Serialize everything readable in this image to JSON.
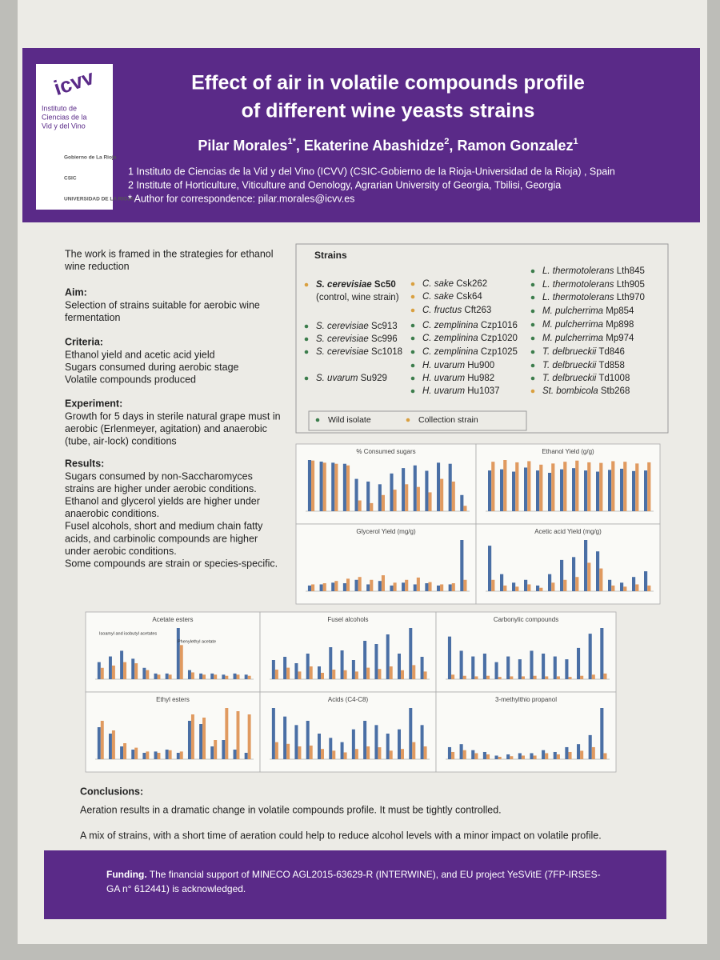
{
  "header": {
    "logo": {
      "name": "icvv",
      "lines": [
        "Instituto de",
        "Ciencias de la",
        "Vid y del Vino"
      ],
      "partners": [
        "Gobierno de La Rioja",
        "CSIC",
        "UNIVERSIDAD DE LA RIOJA"
      ]
    },
    "title": [
      "Effect of air in volatile compounds profile",
      "of different wine yeasts strains"
    ],
    "authors": [
      {
        "name": "Pilar Morales",
        "sup": "1*",
        "punct": ","
      },
      {
        "name": "Ekaterine Abashidze",
        "sup": "2",
        "punct": ","
      },
      {
        "name": "Ramon Gonzalez",
        "sup": "1"
      }
    ],
    "affiliations": [
      "1 Instituto de Ciencias de la Vid y del Vino (ICVV) (CSIC-Gobierno de la Rioja-Universidad de la Rioja) , Spain",
      "2 Institute of Horticulture, Viticulture and Oenology, Agrarian University of Georgia, Tbilisi, Georgia",
      "* Author for correspondence: pilar.morales@icvv.es"
    ]
  },
  "intro": [
    {
      "lines": [
        "The work is framed in the strategies for ethanol",
        "wine reduction"
      ]
    },
    {
      "heading": "Aim:",
      "lines": [
        "Selection of strains suitable for aerobic wine",
        "fermentation"
      ]
    },
    {
      "heading": "Criteria:",
      "lines": [
        "Ethanol yield and acetic acid yield",
        "Sugars consumed during aerobic stage",
        "Volatile compounds produced"
      ]
    },
    {
      "heading": "Experiment:",
      "lines": [
        "Growth for 5 days in sterile natural grape must in",
        "aerobic (Erlenmeyer, agitation) and anaerobic",
        "(tube, air-lock) conditions"
      ]
    },
    {
      "heading": "Results:",
      "lines": [
        "Sugars consumed by non-Saccharomyces",
        "strains are higher under aerobic conditions.",
        "Ethanol and glycerol yields are higher under",
        "anaerobic conditions.",
        "Fusel alcohols, short and medium chain fatty",
        "acids, and carbinolic compounds are higher",
        "under aerobic conditions.",
        "Some compounds are strain or species-specific."
      ]
    }
  ],
  "strains": {
    "title": "Strains",
    "columns": [
      [
        {
          "species": "S. cerevisiae",
          "code": "Sc50",
          "origin": 1,
          "bold": true,
          "note": "(control, wine strain)"
        },
        {
          "species": "S. cerevisiae",
          "code": "Sc913",
          "origin": 0
        },
        {
          "species": "S. cerevisiae",
          "code": "Sc996",
          "origin": 0
        },
        {
          "species": "S. cerevisiae",
          "code": "Sc1018",
          "origin": 0
        },
        {
          "species": "S. uvarum",
          "code": "Su929",
          "origin": 0
        }
      ],
      [
        {
          "species": "C. sake",
          "code": "Csk262",
          "origin": 1
        },
        {
          "species": "C. sake",
          "code": "Csk64",
          "origin": 1
        },
        {
          "species": "C. fructus",
          "code": "Cft263",
          "origin": 1
        },
        {
          "species": "C. zemplinina",
          "code": "Czp1016",
          "origin": 0
        },
        {
          "species": "C. zemplinina",
          "code": "Czp1020",
          "origin": 0
        },
        {
          "species": "C. zemplinina",
          "code": "Czp1025",
          "origin": 0
        },
        {
          "species": "H. uvarum",
          "code": "Hu900",
          "origin": 0
        },
        {
          "species": "H. uvarum",
          "code": "Hu982",
          "origin": 0
        },
        {
          "species": "H. uvarum",
          "code": "Hu1037",
          "origin": 0
        }
      ],
      [
        {
          "species": "L. thermotolerans",
          "code": "Lth845",
          "origin": 0
        },
        {
          "species": "L. thermotolerans",
          "code": "Lth905",
          "origin": 0
        },
        {
          "species": "L. thermotolerans",
          "code": "Lth970",
          "origin": 0
        },
        {
          "species": "M. pulcherrima",
          "code": "Mp854",
          "origin": 0
        },
        {
          "species": "M. pulcherrima",
          "code": "Mp898",
          "origin": 0
        },
        {
          "species": "M. pulcherrima",
          "code": "Mp974",
          "origin": 0
        },
        {
          "species": "T. delbrueckii",
          "code": "Td846",
          "origin": 0
        },
        {
          "species": "T. delbrueckii",
          "code": "Td858",
          "origin": 0
        },
        {
          "species": "T. delbrueckii",
          "code": "Td1008",
          "origin": 0
        },
        {
          "species": "St. bombicola",
          "code": "Stb268",
          "origin": 1
        }
      ]
    ],
    "legend": [
      {
        "name": "Wild isolate",
        "color": "#3c7d4c"
      },
      {
        "name": "Collection strain",
        "color": "#d9a040"
      }
    ]
  },
  "figures": [
    {
      "type": "bar",
      "title": "% Consumed sugars",
      "series": [
        {
          "color": "#4a6fa5",
          "values": [
            95,
            92,
            90,
            88,
            60,
            55,
            50,
            70,
            80,
            85,
            75,
            90,
            88,
            30
          ]
        },
        {
          "color": "#e09a60",
          "values": [
            94,
            90,
            88,
            85,
            20,
            15,
            30,
            40,
            50,
            45,
            35,
            60,
            55,
            10
          ]
        }
      ]
    },
    {
      "type": "bar",
      "title": "Ethanol Yield (g/g)",
      "series": [
        {
          "color": "#4a6fa5",
          "values": [
            70,
            72,
            68,
            75,
            70,
            66,
            72,
            74,
            70,
            68,
            71,
            73,
            69,
            70
          ]
        },
        {
          "color": "#e09a60",
          "values": [
            85,
            88,
            84,
            86,
            80,
            82,
            85,
            87,
            84,
            83,
            86,
            85,
            82,
            84
          ]
        }
      ]
    },
    {
      "type": "bar",
      "title": "Glycerol Yield (mg/g)",
      "series": [
        {
          "color": "#4a6fa5",
          "values": [
            10,
            12,
            15,
            14,
            20,
            12,
            18,
            10,
            15,
            12,
            14,
            10,
            12,
            90
          ]
        },
        {
          "color": "#e09a60",
          "values": [
            12,
            14,
            18,
            22,
            25,
            20,
            28,
            15,
            20,
            24,
            16,
            12,
            14,
            20
          ]
        }
      ]
    },
    {
      "type": "bar",
      "title": "Acetic acid Yield (mg/g)",
      "series": [
        {
          "color": "#4a6fa5",
          "values": [
            80,
            30,
            15,
            20,
            10,
            30,
            55,
            60,
            90,
            70,
            20,
            15,
            25,
            35
          ]
        },
        {
          "color": "#e09a60",
          "values": [
            20,
            10,
            8,
            12,
            6,
            15,
            20,
            25,
            50,
            40,
            10,
            8,
            12,
            10
          ]
        }
      ]
    },
    {
      "type": "bar",
      "title": "Acetate esters",
      "annotations": [
        "Isoamyl and isobutyl acetates",
        "Phenylethyl acetate"
      ],
      "series": [
        {
          "color": "#4a6fa5",
          "values": [
            15,
            20,
            25,
            18,
            10,
            5,
            5,
            45,
            8,
            5,
            5,
            4,
            5,
            4
          ]
        },
        {
          "color": "#e09a60",
          "values": [
            10,
            12,
            15,
            14,
            8,
            4,
            4,
            30,
            6,
            4,
            4,
            3,
            4,
            3
          ]
        }
      ]
    },
    {
      "type": "bar",
      "title": "Fusel alcohols",
      "series": [
        {
          "color": "#4a6fa5",
          "values": [
            30,
            35,
            25,
            40,
            20,
            50,
            45,
            30,
            60,
            55,
            70,
            40,
            80,
            35
          ]
        },
        {
          "color": "#e09a60",
          "values": [
            15,
            18,
            12,
            20,
            10,
            15,
            14,
            12,
            18,
            16,
            20,
            14,
            22,
            12
          ]
        }
      ]
    },
    {
      "type": "bar",
      "title": "Carbonylic compounds",
      "series": [
        {
          "color": "#4a6fa5",
          "values": [
            75,
            50,
            40,
            45,
            30,
            40,
            35,
            50,
            45,
            40,
            35,
            55,
            80,
            90
          ]
        },
        {
          "color": "#e09a60",
          "values": [
            8,
            6,
            5,
            6,
            4,
            5,
            5,
            6,
            5,
            5,
            4,
            6,
            8,
            10
          ]
        }
      ]
    },
    {
      "type": "bar",
      "title": "Ethyl esters",
      "series": [
        {
          "color": "#4a6fa5",
          "values": [
            50,
            40,
            20,
            15,
            10,
            12,
            15,
            10,
            60,
            55,
            20,
            30,
            15,
            10
          ]
        },
        {
          "color": "#e09a60",
          "values": [
            60,
            45,
            25,
            18,
            12,
            10,
            14,
            12,
            70,
            65,
            30,
            80,
            75,
            70
          ]
        }
      ]
    },
    {
      "type": "bar",
      "title": "Acids (C4-C8)",
      "series": [
        {
          "color": "#4a6fa5",
          "values": [
            60,
            50,
            40,
            45,
            30,
            25,
            20,
            35,
            45,
            40,
            30,
            35,
            60,
            40
          ]
        },
        {
          "color": "#e09a60",
          "values": [
            20,
            18,
            15,
            16,
            12,
            10,
            8,
            12,
            15,
            14,
            10,
            12,
            20,
            15
          ]
        }
      ]
    },
    {
      "type": "bar",
      "title": "3-methylthio propanol",
      "series": [
        {
          "color": "#4a6fa5",
          "values": [
            20,
            25,
            15,
            12,
            6,
            8,
            10,
            10,
            15,
            12,
            20,
            25,
            40,
            85
          ]
        },
        {
          "color": "#e09a60",
          "values": [
            12,
            15,
            10,
            8,
            4,
            5,
            6,
            6,
            10,
            8,
            12,
            14,
            20,
            10
          ]
        }
      ]
    }
  ],
  "conclusions": {
    "heading": "Conclusions:",
    "lines": [
      "Aeration results in a dramatic change in volatile compounds profile. It must be tightly controlled.",
      "A mix of strains, with a short time of aeration could help to reduce alcohol levels with a minor impact on volatile profile."
    ]
  },
  "funding": {
    "label": "Funding.",
    "lines": [
      "The financial support of MINECO AGL2015-63629-R (INTERWINE), and EU project YeSVitE (7FP-IRSES-",
      "GA n° 612441) is acknowledged."
    ]
  }
}
